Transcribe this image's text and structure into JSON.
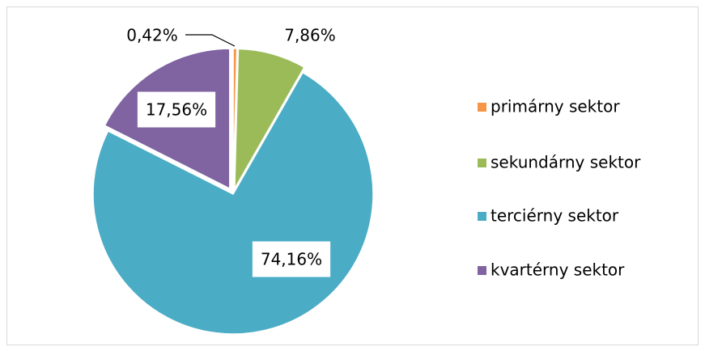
{
  "chart_data": {
    "type": "pie",
    "categories": [
      "primárny sektor",
      "sekundárny sektor",
      "terciérny sektor",
      "kvartérny sektor"
    ],
    "values": [
      0.42,
      7.86,
      74.16,
      17.56
    ],
    "value_labels": [
      "0,42%",
      "7,86%",
      "74,16%",
      "17,56%"
    ],
    "colors": [
      "#f79646",
      "#9bbb59",
      "#4bacc6",
      "#8064a2"
    ],
    "legend": "right"
  }
}
